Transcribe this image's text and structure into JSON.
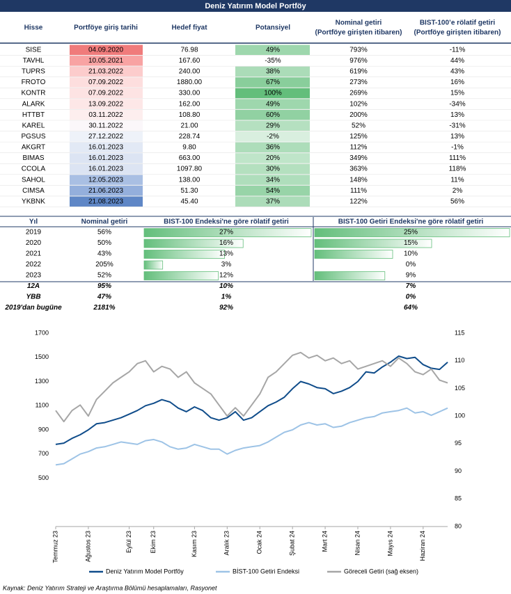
{
  "header": {
    "title": "Deniz Yatırım Model Portföy"
  },
  "portfolio_table": {
    "columns": [
      [
        "Hisse"
      ],
      [
        "Portföye giriş tarihi"
      ],
      [
        "Hedef fiyat"
      ],
      [
        "Potansiyel"
      ],
      [
        "Nominal getiri",
        "(Portföye girişten itibaren)"
      ],
      [
        "BIST-100’e rölatif getiri",
        "(Portföye girişten itibaren)"
      ]
    ],
    "rows": [
      [
        "SISE",
        "04.09.2020",
        "76.98",
        "49%",
        "793%",
        "-11%"
      ],
      [
        "TAVHL",
        "10.05.2021",
        "167.60",
        "-35%",
        "976%",
        "44%"
      ],
      [
        "TUPRS",
        "21.03.2022",
        "240.00",
        "38%",
        "619%",
        "43%"
      ],
      [
        "FROTO",
        "07.09.2022",
        "1880.00",
        "67%",
        "273%",
        "16%"
      ],
      [
        "KONTR",
        "07.09.2022",
        "330.00",
        "100%",
        "269%",
        "15%"
      ],
      [
        "ALARK",
        "13.09.2022",
        "162.00",
        "49%",
        "102%",
        "-34%"
      ],
      [
        "HTTBT",
        "03.11.2022",
        "108.80",
        "60%",
        "200%",
        "13%"
      ],
      [
        "KAREL",
        "30.11.2022",
        "21.00",
        "29%",
        "52%",
        "-31%"
      ],
      [
        "PGSUS",
        "27.12.2022",
        "228.74",
        "-2%",
        "125%",
        "13%"
      ],
      [
        "AKGRT",
        "16.01.2023",
        "9.80",
        "36%",
        "112%",
        "-1%"
      ],
      [
        "BIMAS",
        "16.01.2023",
        "663.00",
        "20%",
        "349%",
        "111%"
      ],
      [
        "CCOLA",
        "16.01.2023",
        "1097.80",
        "30%",
        "363%",
        "118%"
      ],
      [
        "SAHOL",
        "12.05.2023",
        "138.00",
        "34%",
        "148%",
        "11%"
      ],
      [
        "CIMSA",
        "21.06.2023",
        "51.30",
        "54%",
        "111%",
        "2%"
      ],
      [
        "YKBNK",
        "21.08.2023",
        "45.40",
        "37%",
        "122%",
        "56%"
      ]
    ]
  },
  "annual_table": {
    "columns": [
      "Yıl",
      "Nominal getiri",
      "BIST-100 Endeksi'ne göre rölatif getiri",
      "BIST-100 Getiri Endeksi'ne göre rölatif getiri"
    ],
    "rows": [
      [
        "2019",
        "56%",
        "27%",
        "25%"
      ],
      [
        "2020",
        "50%",
        "16%",
        "15%"
      ],
      [
        "2021",
        "43%",
        "13%",
        "10%"
      ],
      [
        "2022",
        "205%",
        "3%",
        "0%"
      ],
      [
        "2023",
        "52%",
        "12%",
        "9%"
      ],
      [
        "12A",
        "95%",
        "10%",
        "7%"
      ],
      [
        "YBB",
        "47%",
        "1%",
        "0%"
      ],
      [
        "2019'dan bugüne",
        "2181%",
        "92%",
        "64%"
      ]
    ]
  },
  "chart_data": {
    "type": "line",
    "categories": [
      "Temmuz 23",
      null,
      null,
      null,
      "Ağustos 23",
      null,
      null,
      null,
      null,
      "Eylül 23",
      null,
      null,
      "Ekim 23",
      null,
      null,
      null,
      null,
      "Kasım 23",
      null,
      null,
      null,
      "Aralık 23",
      null,
      null,
      null,
      "Ocak 24",
      null,
      null,
      null,
      "Şubat 24",
      null,
      null,
      null,
      "Mart 24",
      null,
      null,
      null,
      "Nisan 24",
      null,
      null,
      null,
      "Mayıs 24",
      null,
      null,
      null,
      "Haziran 24",
      null,
      null,
      null
    ],
    "series": [
      {
        "name": "Deniz Yatırım Model Portföy",
        "color": "#0f4c8a",
        "axis": "y",
        "values": [
          780,
          790,
          830,
          860,
          900,
          950,
          960,
          980,
          1000,
          1030,
          1060,
          1100,
          1120,
          1150,
          1130,
          1080,
          1050,
          1090,
          1060,
          1000,
          980,
          1000,
          1050,
          980,
          1000,
          1050,
          1100,
          1130,
          1170,
          1240,
          1300,
          1280,
          1250,
          1240,
          1200,
          1220,
          1250,
          1300,
          1380,
          1370,
          1420,
          1460,
          1510,
          1490,
          1500,
          1440,
          1410,
          1400,
          1460
        ]
      },
      {
        "name": "BİST-100 Getiri Endeksi",
        "color": "#9dc3e6",
        "axis": "y",
        "values": [
          610,
          620,
          660,
          700,
          720,
          750,
          760,
          780,
          800,
          790,
          780,
          810,
          820,
          800,
          760,
          740,
          750,
          780,
          760,
          740,
          740,
          700,
          730,
          750,
          760,
          770,
          800,
          840,
          880,
          900,
          940,
          960,
          940,
          950,
          920,
          930,
          960,
          980,
          1000,
          1010,
          1040,
          1050,
          1060,
          1080,
          1040,
          1050,
          1020,
          1050,
          1080
        ]
      },
      {
        "name": "Göreceli Getiri (sağ eksen)",
        "color": "#a6a6a6",
        "axis": "y2",
        "values": [
          101,
          99,
          101,
          102,
          100,
          103,
          104.5,
          106,
          107,
          108,
          109.5,
          110,
          108,
          109,
          108.5,
          107,
          108,
          106,
          105,
          104,
          102,
          100,
          101.5,
          100,
          102,
          104,
          107,
          108,
          109.5,
          111,
          111.5,
          110.5,
          111,
          110,
          110.5,
          109.5,
          110,
          108.5,
          109,
          109.5,
          110,
          109,
          110.5,
          109.5,
          108,
          107.5,
          108.5,
          106.5,
          106
        ]
      }
    ],
    "ylim": [
      100,
      1700
    ],
    "yticks": [
      500,
      700,
      900,
      1100,
      1300,
      1500,
      1700
    ],
    "y2lim": [
      80,
      115
    ],
    "y2ticks": [
      80,
      85,
      90,
      95,
      100,
      105,
      110,
      115
    ]
  },
  "source": "Kaynak: Deniz Yatırım Strateji ve Araştırma Bölümü hesaplamaları, Rasyonet"
}
